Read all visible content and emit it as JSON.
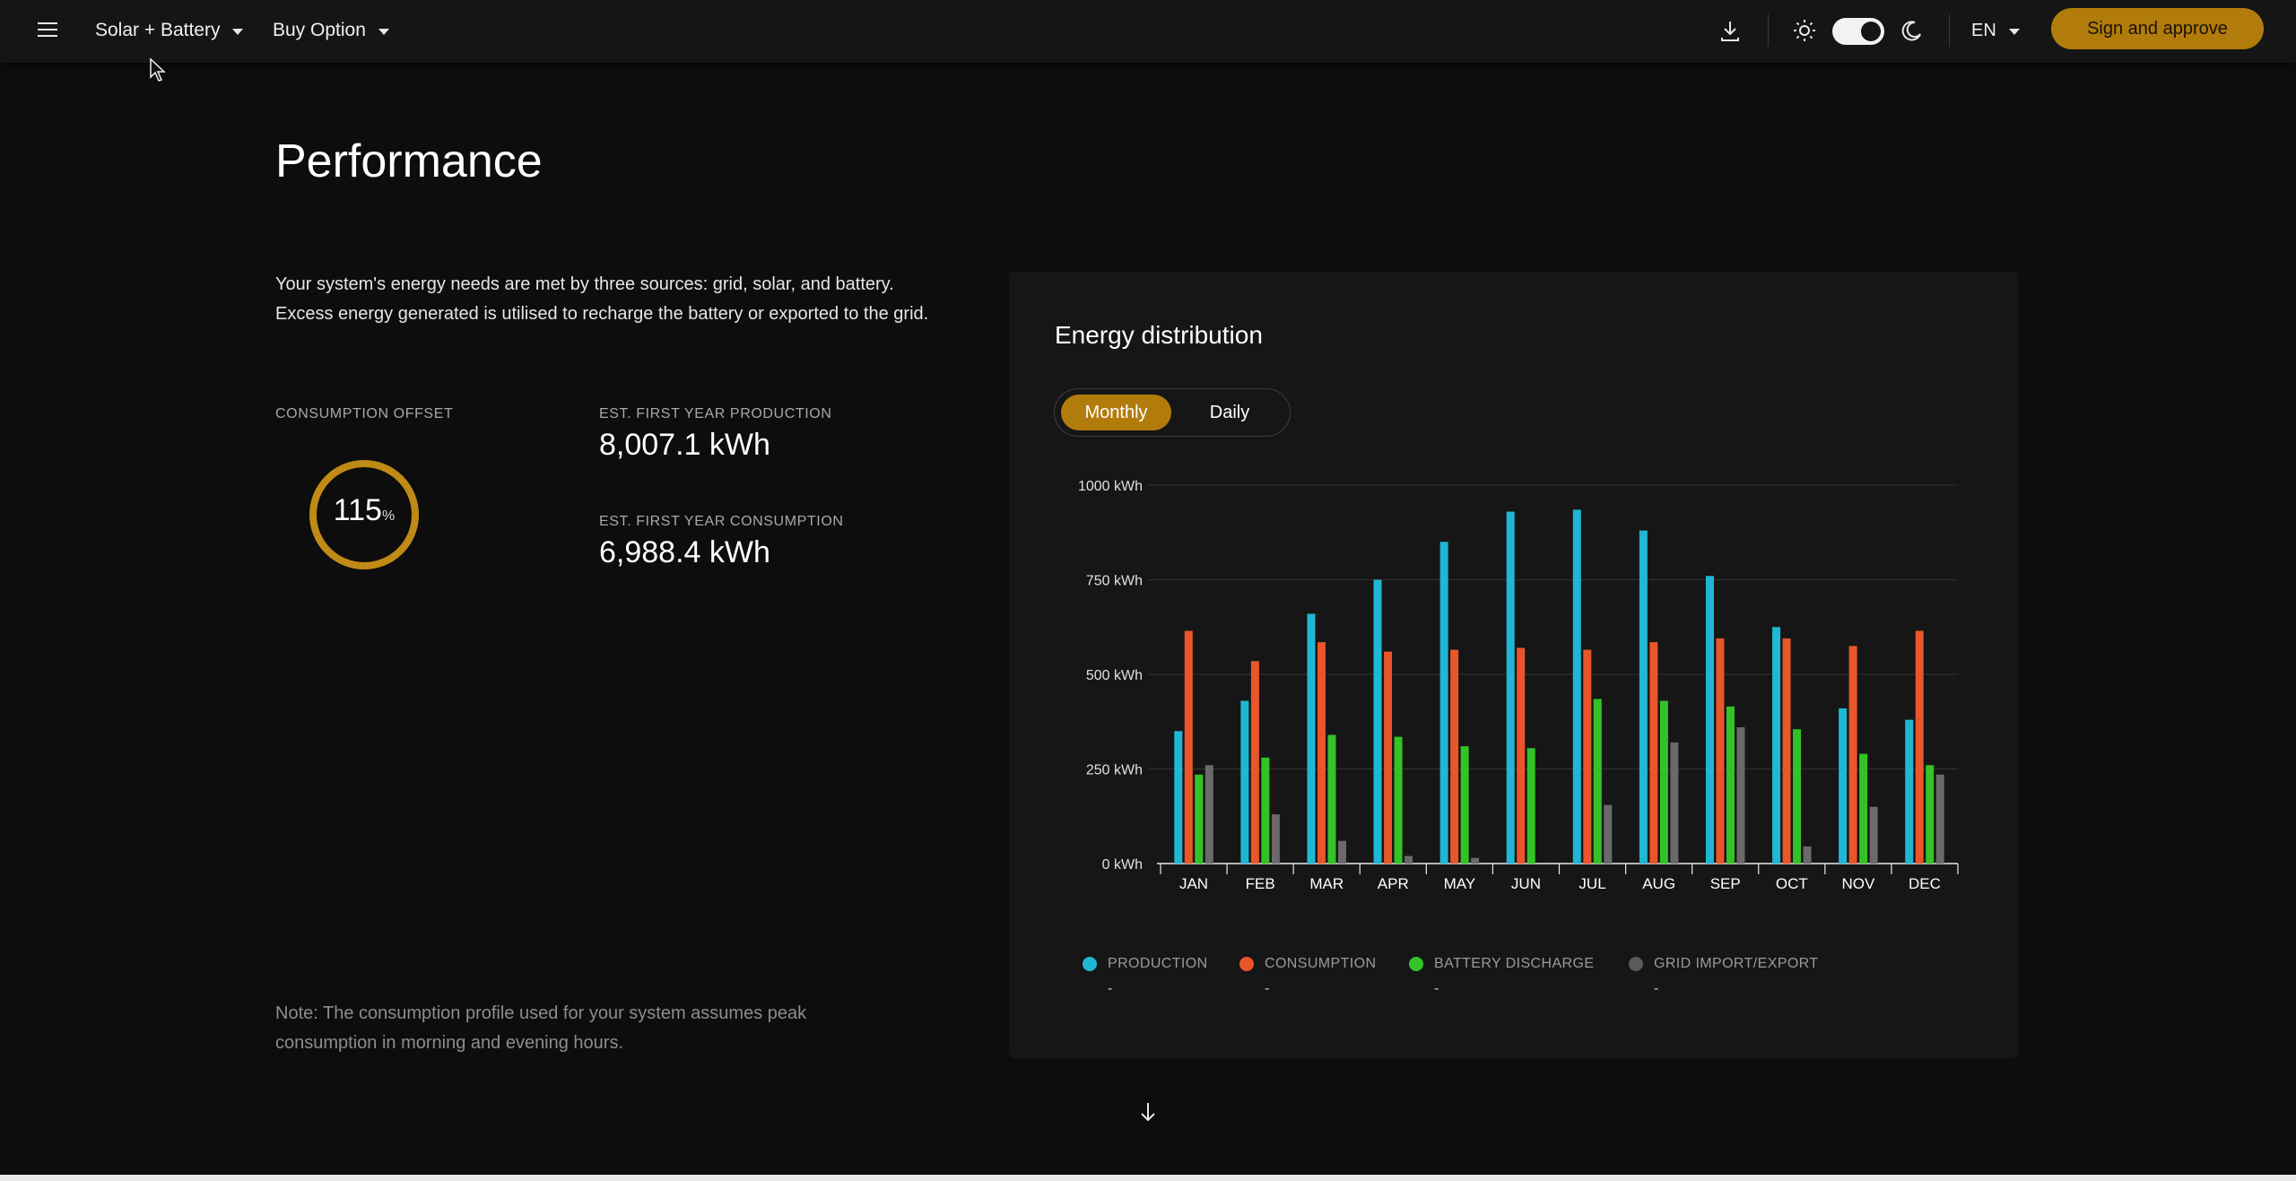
{
  "topbar": {
    "plan_label": "Solar + Battery",
    "option_label": "Buy Option",
    "language": "EN",
    "sign_button": "Sign and approve",
    "theme_toggle_on": true,
    "accent_color": "#b27c0c"
  },
  "main": {
    "title": "Performance",
    "intro": "Your system's energy needs are met by three sources: grid, solar, and battery. Excess energy generated is utilised to recharge the battery or exported to the grid.",
    "offset": {
      "label": "CONSUMPTION OFFSET",
      "value": "115",
      "unit": "%",
      "fill_percent": 100
    },
    "production": {
      "label": "EST. FIRST YEAR PRODUCTION",
      "value": "8,007.1 kWh"
    },
    "consumption": {
      "label": "EST. FIRST YEAR CONSUMPTION",
      "value": "6,988.4 kWh"
    },
    "note": "Note: The consumption profile used for your system assumes peak consumption in morning and evening hours."
  },
  "card": {
    "title": "Energy distribution",
    "tabs": [
      {
        "label": "Monthly",
        "active": true
      },
      {
        "label": "Daily",
        "active": false
      }
    ]
  },
  "chart_data": {
    "type": "bar",
    "categories": [
      "JAN",
      "FEB",
      "MAR",
      "APR",
      "MAY",
      "JUN",
      "JUL",
      "AUG",
      "SEP",
      "OCT",
      "NOV",
      "DEC"
    ],
    "y_ticks": [
      "0 kWh",
      "250 kWh",
      "500 kWh",
      "750 kWh",
      "1000 kWh"
    ],
    "ylim": [
      0,
      1000
    ],
    "grid": true,
    "legend_position": "bottom",
    "series": [
      {
        "name": "PRODUCTION",
        "color": "#1fb7d4",
        "values": [
          350,
          430,
          660,
          750,
          850,
          930,
          935,
          880,
          760,
          625,
          410,
          380
        ]
      },
      {
        "name": "CONSUMPTION",
        "color": "#e8562a",
        "values": [
          615,
          535,
          585,
          560,
          565,
          570,
          565,
          585,
          595,
          595,
          575,
          615
        ]
      },
      {
        "name": "BATTERY DISCHARGE",
        "color": "#34c327",
        "values": [
          235,
          280,
          340,
          335,
          310,
          305,
          435,
          430,
          415,
          355,
          290,
          260
        ]
      },
      {
        "name": "GRID IMPORT/EXPORT",
        "color": "#6a6a6a",
        "values": [
          260,
          130,
          60,
          20,
          15,
          0,
          155,
          320,
          360,
          45,
          150,
          235
        ]
      }
    ],
    "legend_values": [
      "-",
      "-",
      "-",
      "-"
    ]
  }
}
